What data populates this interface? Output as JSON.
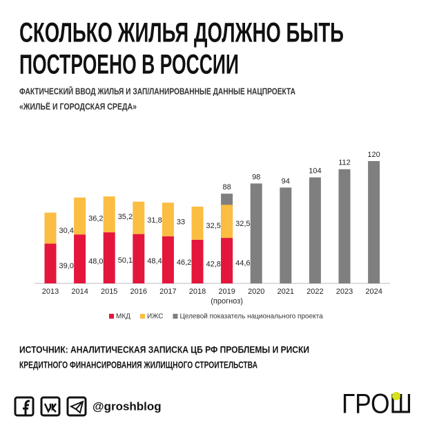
{
  "chart_data": {
    "type": "bar",
    "title": [
      "СКОЛЬКО ЖИЛЬЯ ДОЛЖНО БЫТЬ",
      "ПОСТРОЕНО В РОССИИ"
    ],
    "subtitle": [
      "ФАКТИЧЕСКИЙ ВВОД ЖИЛЬЯ И ЗАП/ЛАНИРОВАННЫЕ ДАННЫЕ НАЦПРОЕКТА",
      "«ЖИЛЬЁ И ГОРОДСКАЯ СРЕДА»"
    ],
    "categories": [
      "2013",
      "2014",
      "2015",
      "2016",
      "2017",
      "2018",
      "2019",
      "2020",
      "2021",
      "2022",
      "2023",
      "2024"
    ],
    "category_notes": [
      null,
      null,
      null,
      null,
      null,
      null,
      "(прогноз)",
      null,
      null,
      null,
      null,
      null
    ],
    "ylim": [
      0,
      120
    ],
    "series": [
      {
        "name": "Целевой показатель национального проекта",
        "color": "#7f7f7f",
        "layer": "behind",
        "values": [
          null,
          null,
          null,
          null,
          null,
          null,
          88,
          98,
          94,
          104,
          112,
          120
        ]
      },
      {
        "name": "МКД",
        "color": "#e4163c",
        "values": [
          39.0,
          48.0,
          50.1,
          48.4,
          46.2,
          42.8,
          44.6,
          null,
          null,
          null,
          null,
          null
        ],
        "value_labels": [
          "39,0",
          "48,0",
          "50,1",
          "48,4",
          "46,2",
          "42,8",
          "44,6",
          null,
          null,
          null,
          null,
          null
        ]
      },
      {
        "name": "ИЖС",
        "color": "#fbbd42",
        "values": [
          30.4,
          36.2,
          35.2,
          31.8,
          33,
          32.5,
          32.5,
          null,
          null,
          null,
          null,
          null
        ],
        "value_labels": [
          "30,4",
          "36,2",
          "35,2",
          "31,8",
          "33",
          "32,5",
          "32,5",
          null,
          null,
          null,
          null,
          null
        ]
      }
    ],
    "legend_order": [
      1,
      2,
      0
    ],
    "source": [
      "ИСТОЧНИК: АНАЛИТИЧЕСКАЯ ЗАПИСКА ЦБ РФ ПРОБЛЕМЫ И РИСКИ",
      "КРЕДИТНОГО ФИНАНСИРОВАНИЯ ЖИЛИЩНОГО СТРОИТЕЛЬСТВА"
    ]
  },
  "footer": {
    "handle": "@groshblog",
    "logo": "ГРОШ"
  }
}
